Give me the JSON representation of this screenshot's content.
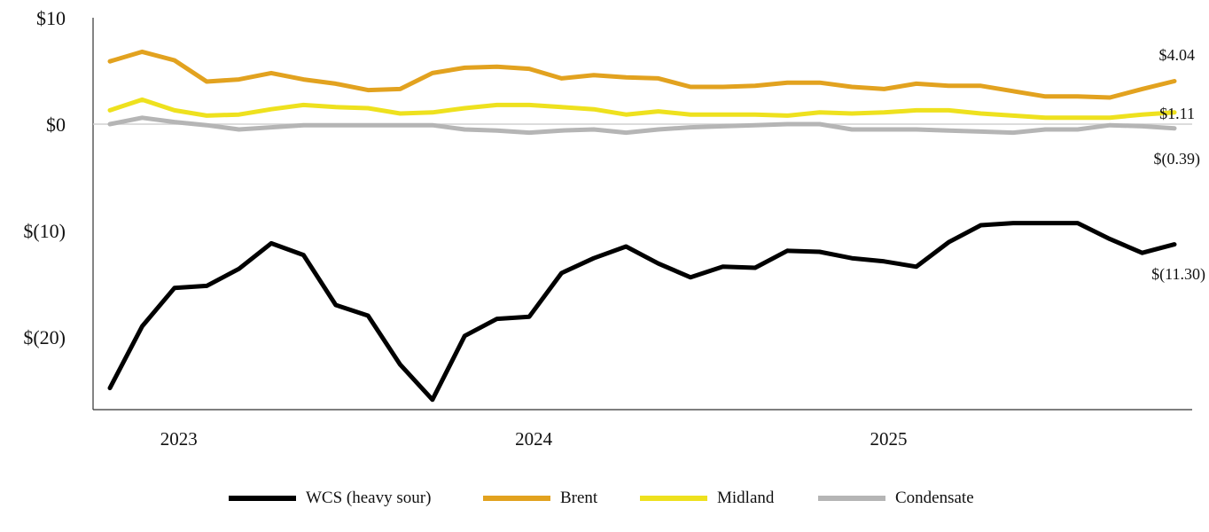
{
  "chart_data": {
    "type": "line",
    "title": "",
    "xlabel": "",
    "ylabel": "",
    "ylim": [
      -27,
      10
    ],
    "y_ticks": [
      {
        "value": 10,
        "label": "$10"
      },
      {
        "value": 0,
        "label": "$0"
      },
      {
        "value": -10,
        "label": "$(10)"
      },
      {
        "value": -20,
        "label": "$(20)"
      }
    ],
    "x_tick_labels": [
      {
        "label": "2023",
        "index": 2
      },
      {
        "label": "2024",
        "index": 13
      },
      {
        "label": "2025",
        "index": 24
      }
    ],
    "grid": false,
    "zero_line": true,
    "legend_position": "bottom",
    "series": [
      {
        "name": "WCS (heavy sour)",
        "color": "#000000",
        "end_label": "$(11.30)",
        "values": [
          -24.8,
          -19.0,
          -15.4,
          -15.2,
          -13.6,
          -11.2,
          -12.3,
          -17.0,
          -18.0,
          -22.6,
          -25.9,
          -19.9,
          -18.3,
          -18.1,
          -14.0,
          -12.6,
          -11.5,
          -13.1,
          -14.4,
          -13.4,
          -13.5,
          -11.9,
          -12.0,
          -12.6,
          -12.9,
          -13.4,
          -11.1,
          -9.5,
          -9.3,
          -9.3,
          -9.3,
          -10.8,
          -12.1,
          -11.3
        ]
      },
      {
        "name": "Brent",
        "color": "#E2A21F",
        "end_label": "$4.04",
        "values": [
          5.9,
          6.8,
          6.0,
          4.0,
          4.2,
          4.8,
          4.2,
          3.8,
          3.2,
          3.3,
          4.8,
          5.3,
          5.4,
          5.2,
          4.3,
          4.6,
          4.4,
          4.3,
          3.5,
          3.5,
          3.6,
          3.9,
          3.9,
          3.5,
          3.3,
          3.8,
          3.6,
          3.6,
          3.1,
          2.6,
          2.6,
          2.5,
          3.3,
          4.04
        ]
      },
      {
        "name": "Midland",
        "color": "#EEE11E",
        "end_label": "$1.11",
        "values": [
          1.3,
          2.3,
          1.3,
          0.8,
          0.9,
          1.4,
          1.8,
          1.6,
          1.5,
          1.0,
          1.1,
          1.5,
          1.8,
          1.8,
          1.6,
          1.4,
          0.9,
          1.2,
          0.9,
          0.9,
          0.9,
          0.8,
          1.1,
          1.0,
          1.1,
          1.3,
          1.3,
          1.0,
          0.8,
          0.6,
          0.6,
          0.6,
          0.9,
          1.11
        ]
      },
      {
        "name": "Condensate",
        "color": "#B5B5B5",
        "end_label": "$(0.39)",
        "values": [
          0.0,
          0.6,
          0.2,
          -0.1,
          -0.5,
          -0.3,
          -0.1,
          -0.1,
          -0.1,
          -0.1,
          -0.1,
          -0.5,
          -0.6,
          -0.8,
          -0.6,
          -0.5,
          -0.8,
          -0.5,
          -0.3,
          -0.2,
          -0.1,
          0.0,
          0.0,
          -0.5,
          -0.5,
          -0.5,
          -0.6,
          -0.7,
          -0.8,
          -0.5,
          -0.5,
          -0.1,
          -0.2,
          -0.39
        ]
      }
    ]
  }
}
